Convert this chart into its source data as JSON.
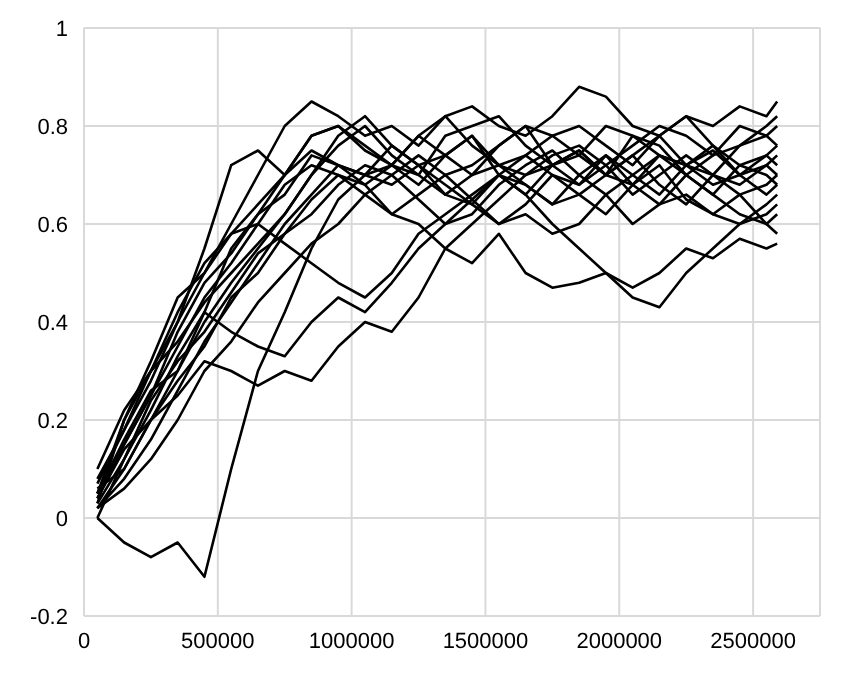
{
  "chart_data": {
    "type": "line",
    "grid": true,
    "marker": "none",
    "line_style": "solid",
    "legend": false,
    "xlim": [
      0,
      2750000
    ],
    "xticks": [
      0,
      500000,
      1000000,
      1500000,
      2000000,
      2500000
    ],
    "ylim": [
      -0.2,
      1
    ],
    "yticks": [
      -0.2,
      0,
      0.2,
      0.4,
      0.6,
      0.8,
      1
    ],
    "x": [
      50000,
      150000,
      250000,
      350000,
      450000,
      550000,
      650000,
      750000,
      850000,
      950000,
      1050000,
      1150000,
      1250000,
      1350000,
      1450000,
      1550000,
      1650000,
      1750000,
      1850000,
      1950000,
      2050000,
      2150000,
      2250000,
      2350000,
      2450000,
      2550000,
      2590000
    ],
    "series": [
      {
        "color": "#000000",
        "values": [
          0.05,
          0.2,
          0.3,
          0.4,
          0.55,
          0.72,
          0.75,
          0.7,
          0.78,
          0.8,
          0.75,
          0.72,
          0.78,
          0.74,
          0.7,
          0.76,
          0.8,
          0.72,
          0.75,
          0.7,
          0.78,
          0.74,
          0.72,
          0.76,
          0.7,
          0.74,
          0.72
        ]
      },
      {
        "color": "#000000",
        "values": [
          0.0,
          -0.05,
          -0.08,
          -0.05,
          -0.12,
          0.1,
          0.3,
          0.42,
          0.55,
          0.65,
          0.7,
          0.72,
          0.68,
          0.74,
          0.78,
          0.7,
          0.66,
          0.72,
          0.75,
          0.7,
          0.68,
          0.74,
          0.7,
          0.66,
          0.72,
          0.7,
          0.68
        ]
      },
      {
        "color": "#000000",
        "values": [
          0.02,
          0.1,
          0.2,
          0.25,
          0.32,
          0.3,
          0.27,
          0.3,
          0.28,
          0.35,
          0.4,
          0.38,
          0.45,
          0.55,
          0.6,
          0.65,
          0.7,
          0.72,
          0.68,
          0.74,
          0.7,
          0.66,
          0.72,
          0.75,
          0.7,
          0.66,
          0.68
        ]
      },
      {
        "color": "#000000",
        "values": [
          0.05,
          0.15,
          0.25,
          0.35,
          0.45,
          0.52,
          0.6,
          0.68,
          0.72,
          0.7,
          0.66,
          0.62,
          0.6,
          0.55,
          0.52,
          0.58,
          0.5,
          0.47,
          0.48,
          0.5,
          0.45,
          0.43,
          0.5,
          0.55,
          0.6,
          0.62,
          0.64
        ]
      },
      {
        "color": "#000000",
        "values": [
          0.03,
          0.12,
          0.22,
          0.33,
          0.42,
          0.38,
          0.35,
          0.33,
          0.4,
          0.45,
          0.42,
          0.48,
          0.55,
          0.6,
          0.65,
          0.7,
          0.66,
          0.6,
          0.55,
          0.5,
          0.47,
          0.5,
          0.55,
          0.53,
          0.57,
          0.55,
          0.56
        ]
      },
      {
        "color": "#000000",
        "values": [
          0.08,
          0.18,
          0.28,
          0.4,
          0.5,
          0.6,
          0.7,
          0.8,
          0.85,
          0.82,
          0.78,
          0.8,
          0.76,
          0.82,
          0.84,
          0.8,
          0.78,
          0.82,
          0.88,
          0.86,
          0.8,
          0.78,
          0.82,
          0.8,
          0.84,
          0.82,
          0.85
        ]
      },
      {
        "color": "#000000",
        "values": [
          0.04,
          0.14,
          0.2,
          0.3,
          0.4,
          0.48,
          0.55,
          0.62,
          0.7,
          0.76,
          0.8,
          0.74,
          0.7,
          0.78,
          0.8,
          0.82,
          0.76,
          0.72,
          0.74,
          0.8,
          0.78,
          0.76,
          0.7,
          0.74,
          0.8,
          0.78,
          0.8
        ]
      },
      {
        "color": "#000000",
        "values": [
          0.06,
          0.1,
          0.2,
          0.28,
          0.35,
          0.45,
          0.5,
          0.58,
          0.65,
          0.7,
          0.68,
          0.62,
          0.66,
          0.7,
          0.65,
          0.6,
          0.64,
          0.7,
          0.66,
          0.62,
          0.68,
          0.72,
          0.65,
          0.62,
          0.66,
          0.6,
          0.62
        ]
      },
      {
        "color": "#000000",
        "values": [
          0.02,
          0.08,
          0.16,
          0.26,
          0.36,
          0.44,
          0.52,
          0.6,
          0.66,
          0.72,
          0.7,
          0.76,
          0.72,
          0.68,
          0.64,
          0.6,
          0.62,
          0.58,
          0.6,
          0.66,
          0.7,
          0.74,
          0.72,
          0.68,
          0.7,
          0.72,
          0.74
        ]
      },
      {
        "color": "#000000",
        "values": [
          0.1,
          0.22,
          0.3,
          0.36,
          0.44,
          0.5,
          0.56,
          0.62,
          0.7,
          0.78,
          0.82,
          0.76,
          0.72,
          0.74,
          0.78,
          0.72,
          0.74,
          0.78,
          0.8,
          0.76,
          0.72,
          0.78,
          0.82,
          0.76,
          0.72,
          0.74,
          0.76
        ]
      },
      {
        "color": "#000000",
        "values": [
          0.0,
          0.12,
          0.24,
          0.32,
          0.38,
          0.46,
          0.54,
          0.58,
          0.62,
          0.68,
          0.72,
          0.7,
          0.65,
          0.6,
          0.62,
          0.68,
          0.72,
          0.75,
          0.7,
          0.66,
          0.6,
          0.64,
          0.7,
          0.66,
          0.62,
          0.6,
          0.58
        ]
      },
      {
        "color": "#000000",
        "values": [
          0.05,
          0.16,
          0.26,
          0.3,
          0.42,
          0.55,
          0.62,
          0.66,
          0.74,
          0.72,
          0.68,
          0.72,
          0.78,
          0.82,
          0.76,
          0.72,
          0.7,
          0.74,
          0.76,
          0.72,
          0.76,
          0.8,
          0.78,
          0.74,
          0.76,
          0.8,
          0.82
        ]
      },
      {
        "color": "#000000",
        "values": [
          0.03,
          0.2,
          0.32,
          0.45,
          0.5,
          0.58,
          0.64,
          0.7,
          0.75,
          0.72,
          0.7,
          0.68,
          0.72,
          0.66,
          0.64,
          0.7,
          0.74,
          0.7,
          0.68,
          0.72,
          0.66,
          0.7,
          0.74,
          0.7,
          0.66,
          0.68,
          0.7
        ]
      },
      {
        "color": "#000000",
        "values": [
          0.02,
          0.06,
          0.12,
          0.2,
          0.3,
          0.36,
          0.44,
          0.5,
          0.56,
          0.6,
          0.66,
          0.7,
          0.74,
          0.7,
          0.72,
          0.76,
          0.8,
          0.78,
          0.74,
          0.7,
          0.74,
          0.78,
          0.72,
          0.7,
          0.76,
          0.78,
          0.76
        ]
      },
      {
        "color": "#000000",
        "values": [
          0.07,
          0.18,
          0.3,
          0.42,
          0.52,
          0.58,
          0.6,
          0.56,
          0.52,
          0.48,
          0.45,
          0.5,
          0.58,
          0.62,
          0.66,
          0.7,
          0.68,
          0.64,
          0.7,
          0.74,
          0.68,
          0.64,
          0.66,
          0.62,
          0.6,
          0.64,
          0.66
        ]
      },
      {
        "color": "#000000",
        "values": [
          0.04,
          0.15,
          0.25,
          0.38,
          0.48,
          0.54,
          0.62,
          0.7,
          0.78,
          0.8,
          0.76,
          0.72,
          0.7,
          0.66,
          0.7,
          0.72,
          0.68,
          0.64,
          0.66,
          0.7,
          0.74,
          0.68,
          0.64,
          0.7,
          0.68,
          0.72,
          0.7
        ]
      }
    ]
  }
}
